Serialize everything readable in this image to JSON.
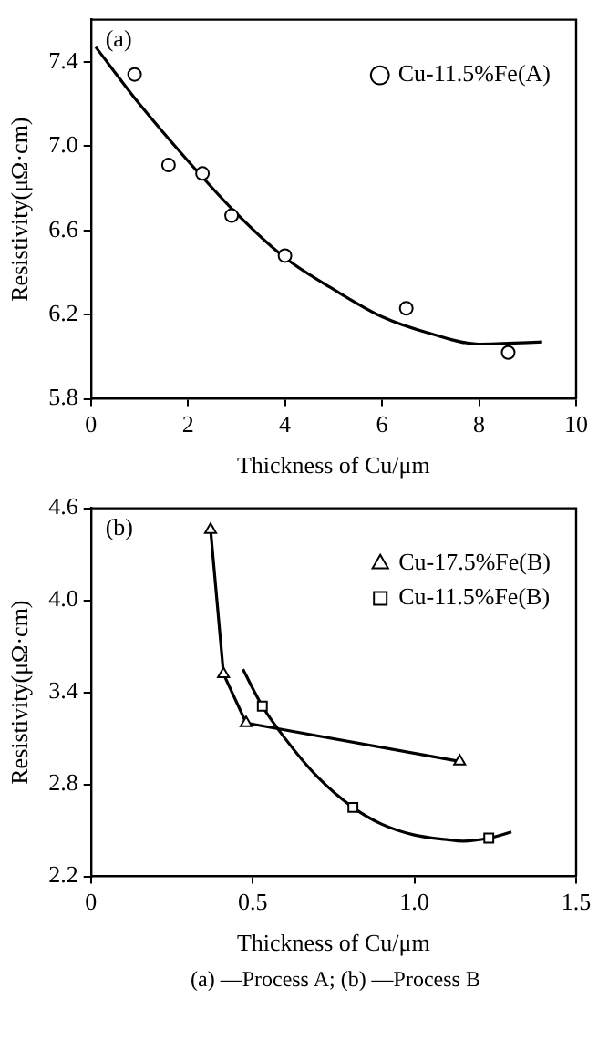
{
  "chart_data": [
    {
      "type": "scatter",
      "title": "(a)",
      "xlabel": "Thickness of Cu/μm",
      "ylabel": "Resistivity(μΩ·cm)",
      "xlim": [
        0,
        10
      ],
      "ylim": [
        5.8,
        7.6
      ],
      "xticks": [
        0,
        2,
        4,
        6,
        8,
        10
      ],
      "yticks": [
        5.8,
        6.2,
        6.6,
        {
          "value": 7,
          "label": "7.0"
        },
        7.4
      ],
      "grid": false,
      "legend": "top right",
      "series": [
        {
          "name": "Cu-11.5%Fe(A)",
          "marker": "circle",
          "color": "#000000",
          "x": [
            0.9,
            1.6,
            2.3,
            2.9,
            4.0,
            6.5,
            8.6
          ],
          "values": [
            7.34,
            6.91,
            6.87,
            6.67,
            6.48,
            6.23,
            6.02
          ]
        },
        {
          "type": "line",
          "marker": "none",
          "color": "#000000",
          "x": [
            0.1,
            1,
            2,
            3,
            4,
            5,
            6,
            7,
            8,
            9.3
          ],
          "values": [
            7.47,
            7.2,
            6.93,
            6.68,
            6.47,
            6.32,
            6.19,
            6.11,
            6.06,
            6.07
          ]
        }
      ]
    },
    {
      "type": "line",
      "title": "(b)",
      "xlabel": "Thickness of Cu/μm",
      "ylabel": "Resistivity(μΩ·cm)",
      "xlim": [
        0,
        1.5
      ],
      "ylim": [
        2.2,
        4.6
      ],
      "xticks": [
        0,
        0.5,
        {
          "value": 1,
          "label": "1.0"
        },
        1.5
      ],
      "yticks": [
        2.2,
        2.8,
        3.4,
        {
          "value": 4,
          "label": "4.0"
        },
        4.6
      ],
      "grid": false,
      "legend": "top right",
      "annotations": [
        "(a) —Process A; (b) —Process B"
      ],
      "series": [
        {
          "name": "Cu-17.5%Fe(B)",
          "marker": "triangle",
          "color": "#000000",
          "x": [
            0.37,
            0.41,
            0.48,
            1.14
          ],
          "values": [
            4.46,
            3.52,
            3.2,
            2.95
          ]
        },
        {
          "name": "Cu-11.5%Fe(B)",
          "type": "scatter",
          "marker": "square",
          "color": "#000000",
          "x": [
            0.53,
            0.81,
            1.23
          ],
          "values": [
            3.31,
            2.65,
            2.45
          ]
        },
        {
          "marker": "none",
          "color": "#000000",
          "x": [
            0.47,
            0.53,
            0.6,
            0.7,
            0.81,
            0.9,
            1.0,
            1.1,
            1.15,
            1.23,
            1.3
          ],
          "values": [
            3.55,
            3.31,
            3.1,
            2.85,
            2.65,
            2.54,
            2.47,
            2.44,
            2.43,
            2.45,
            2.49
          ]
        }
      ]
    }
  ]
}
